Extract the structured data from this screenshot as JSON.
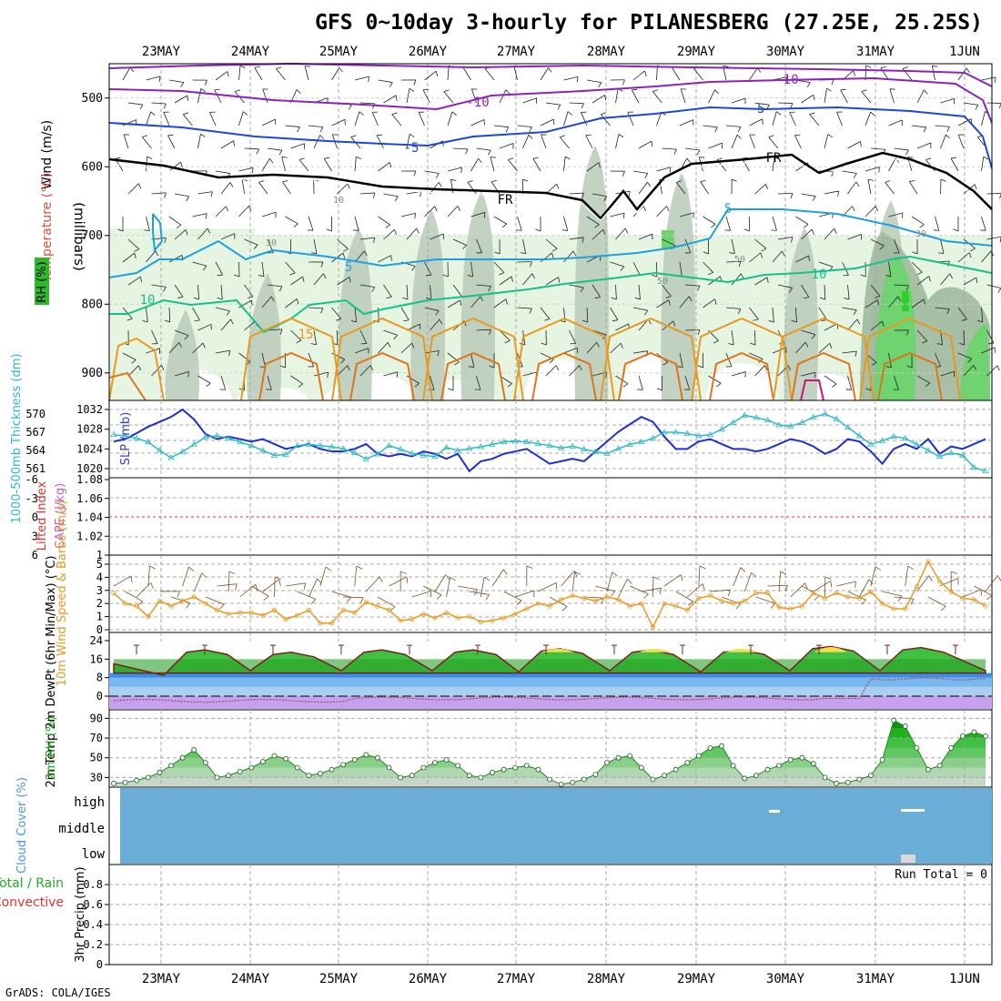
{
  "title": "GFS 0~10day 3-hourly for PILANESBERG (27.25E, 25.25S)",
  "footer": "GrADS: COLA/IGES",
  "dates": [
    "23MAY",
    "24MAY",
    "25MAY",
    "26MAY",
    "27MAY",
    "28MAY",
    "29MAY",
    "30MAY",
    "31MAY",
    "1JUN"
  ],
  "colors": {
    "purple": "#8a22c0",
    "blue": "#1c48d6",
    "black": "#000000",
    "cyan": "#1ea0e0",
    "teal": "#14c08c",
    "orange": "#e89a20",
    "darkorange": "#e0741a",
    "rhlight": "#e6f5e2",
    "rhmid": "#b4c8b4",
    "rhdark": "#6fd36f",
    "cloud": "#6aaed8",
    "precipgrid": "#aaaaaa"
  },
  "panels": {
    "upper": {
      "ylabel_wind": "Wind (m/s)",
      "ylabel_temp": "Temperature (°C)",
      "ylabel_rh": "RH (%)",
      "ylabel_pressure": "(millibars)",
      "yticks": [
        "500",
        "600",
        "700",
        "800",
        "900"
      ],
      "labels": {
        "m10a": "-10",
        "m10b": "-10",
        "m5a": "-5",
        "m5b": "-5",
        "fr1": "FR",
        "fr2": "FR",
        "p5a": "5",
        "p5b": "5",
        "p10a": "10",
        "p10b": "10",
        "p15": "15",
        "rh10": "10",
        "rh30a": "30",
        "rh30b": "30",
        "rh30c": "30",
        "rh50a": "50",
        "rh50b": "50"
      }
    },
    "thickness": {
      "ylabel_left": "1000-500mb Thickness (dm)",
      "ylabel_right": "SLP (mb)",
      "left_ticks": [
        "570",
        "567",
        "564",
        "561"
      ],
      "right_ticks": [
        "1032",
        "1028",
        "1024",
        "1020"
      ]
    },
    "cape": {
      "ylabel_left": "Lifted Index",
      "ylabel_right": "CAPE (J/kg)",
      "left_ticks": [
        "-6",
        "-3",
        "0",
        "3",
        "6"
      ],
      "right_ticks": [
        "1.08",
        "1.06",
        "1.04",
        "1.02",
        "1"
      ]
    },
    "wind10": {
      "ylabel": "10m Wind Speed & Barbs (m/s)",
      "ticks": [
        "5",
        "4",
        "3",
        "2",
        "1",
        "0"
      ]
    },
    "temp2m": {
      "ylabel": "2m Temp 2m DewPt (6hr Min/Max) (°C)",
      "ticks": [
        "24",
        "16",
        "8",
        "0"
      ]
    },
    "rh2m": {
      "ylabel": "2m RH (%)",
      "ticks": [
        "90",
        "70",
        "50",
        "30"
      ]
    },
    "cloud": {
      "ylabel": "Cloud Cover (%)",
      "levels": [
        "high",
        "middle",
        "low"
      ]
    },
    "precip": {
      "ylabel_left": "Total / Rain Convective",
      "ylabel_right": "3hr Precip (mm)",
      "ticks": [
        "0.8",
        "0.6",
        "0.4",
        "0.2",
        "0"
      ],
      "run_total": "Run Total = 0"
    }
  },
  "chart_data": [
    {
      "type": "line",
      "title": "1000-500mb Thickness (dm) and SLP (mb)",
      "x": [
        "22MAY18",
        "22MAY21",
        "23MAY00",
        "23MAY03",
        "23MAY06",
        "23MAY09",
        "23MAY12",
        "23MAY15",
        "23MAY18",
        "23MAY21",
        "24MAY00",
        "24MAY03",
        "24MAY06",
        "24MAY09",
        "24MAY12",
        "24MAY15",
        "24MAY18",
        "24MAY21",
        "25MAY00",
        "25MAY03",
        "25MAY06",
        "25MAY09",
        "25MAY12",
        "25MAY15",
        "25MAY18",
        "25MAY21",
        "26MAY00",
        "26MAY03",
        "26MAY06",
        "26MAY09",
        "26MAY12",
        "26MAY15",
        "26MAY18",
        "26MAY21",
        "27MAY00",
        "27MAY03",
        "27MAY06",
        "27MAY09",
        "27MAY12",
        "27MAY15",
        "27MAY18",
        "27MAY21",
        "28MAY00",
        "28MAY03",
        "28MAY06",
        "28MAY09",
        "28MAY12",
        "28MAY15",
        "28MAY18",
        "28MAY21",
        "29MAY00",
        "29MAY03",
        "29MAY06",
        "29MAY09",
        "29MAY12",
        "29MAY15",
        "29MAY18",
        "29MAY21",
        "30MAY00",
        "30MAY03",
        "30MAY06",
        "30MAY09",
        "30MAY12",
        "30MAY15",
        "30MAY18",
        "30MAY21",
        "31MAY00",
        "31MAY03",
        "31MAY06",
        "31MAY09",
        "31MAY12",
        "31MAY15",
        "31MAY18",
        "31MAY21",
        "1JUN00",
        "1JUN03",
        "1JUN06"
      ],
      "series": [
        {
          "name": "SLP",
          "values": [
            1025.5,
            1026.0,
            1027.2,
            1028.5,
            1029.5,
            1030.5,
            1032.0,
            1030.0,
            1027.0,
            1026.0,
            1026.5,
            1026.0,
            1025.5,
            1026.0,
            1025.0,
            1024.0,
            1024.5,
            1025.0,
            1024.0,
            1023.5,
            1023.5,
            1024.0,
            1025.0,
            1023.0,
            1022.5,
            1023.0,
            1022.5,
            1023.5,
            1023.0,
            1022.0,
            1023.0,
            1019.5,
            1021.5,
            1022.0,
            1023.0,
            1023.5,
            1024.0,
            1022.5,
            1021.0,
            1021.5,
            1022.0,
            1021.5,
            1023.5,
            1025.5,
            1027.5,
            1029.0,
            1030.5,
            1029.5,
            1026.5,
            1024.0,
            1024.0,
            1025.5,
            1026.0,
            1025.0,
            1024.0,
            1024.0,
            1023.5,
            1024.0,
            1025.0,
            1026.0,
            1025.5,
            1024.5,
            1023.0,
            1024.0,
            1026.0,
            1025.5,
            1023.5,
            1021.0,
            1024.0,
            1025.0,
            1024.0,
            1026.0,
            1023.0,
            1024.5,
            1024.0,
            1025.0,
            1026.0
          ]
        },
        {
          "name": "Thickness",
          "values": [
            566.6,
            566.4,
            566.0,
            565.4,
            564.0,
            562.8,
            563.8,
            565.0,
            566.2,
            566.4,
            566.0,
            565.4,
            564.8,
            564.0,
            563.2,
            563.3,
            564.8,
            565.0,
            564.8,
            564.6,
            564.3,
            563.6,
            562.6,
            563.4,
            564.8,
            564.2,
            563.5,
            563.2,
            563.0,
            564.5,
            564.0,
            564.3,
            564.6,
            565.0,
            565.4,
            565.5,
            565.4,
            565.1,
            564.8,
            564.4,
            564.7,
            564.2,
            563.8,
            563.5,
            564.3,
            565.0,
            565.4,
            566.0,
            567.0,
            567.0,
            566.8,
            566.4,
            566.6,
            567.5,
            568.6,
            569.8,
            569.4,
            569.0,
            568.2,
            568.0,
            568.6,
            569.5,
            570.0,
            569.2,
            567.8,
            566.4,
            565.0,
            565.6,
            566.3,
            566.0,
            565.0,
            564.0,
            563.0,
            563.6,
            563.2,
            561.2,
            560.6
          ]
        }
      ]
    },
    {
      "type": "line",
      "title": "10m Wind Speed (m/s)",
      "y": [
        2.8,
        2.0,
        1.8,
        1.0,
        2.2,
        1.8,
        2.2,
        2.5,
        2.0,
        1.5,
        1.2,
        1.3,
        1.3,
        1.1,
        1.5,
        0.8,
        1.1,
        1.5,
        0.5,
        0.5,
        1.5,
        1.3,
        2.1,
        1.8,
        1.5,
        0.7,
        0.8,
        1.2,
        0.9,
        1.3,
        0.9,
        1.0,
        0.6,
        0.7,
        0.9,
        1.2,
        1.6,
        2.0,
        1.8,
        2.3,
        2.6,
        2.4,
        2.2,
        2.5,
        2.3,
        1.8,
        2.0,
        0.2,
        2.0,
        1.8,
        1.5,
        2.4,
        2.6,
        2.2,
        2.0,
        2.2,
        2.8,
        2.8,
        1.7,
        1.6,
        1.8,
        2.8,
        2.4,
        2.8,
        2.5,
        2.4,
        2.9,
        2.0,
        1.6,
        1.6,
        3.3,
        5.2,
        3.7,
        2.9,
        2.4,
        2.3,
        1.8
      ],
      "ylim": [
        0,
        5
      ]
    },
    {
      "type": "area",
      "title": "2m Temp (°C)",
      "max_values": [
        14,
        20,
        19,
        20,
        20,
        20.5,
        20,
        20,
        21.5,
        21
      ],
      "min_values": [
        9,
        11,
        11,
        11,
        10.5,
        11,
        10.5,
        11,
        11,
        10
      ],
      "ylim": [
        -4,
        24
      ]
    },
    {
      "type": "area",
      "title": "2m RH (%)",
      "y": [
        24,
        25,
        27,
        30,
        35,
        42,
        50,
        58,
        45,
        30,
        32,
        36,
        40,
        46,
        52,
        49,
        40,
        32,
        34,
        38,
        43,
        48,
        53,
        50,
        40,
        30,
        32,
        40,
        45,
        48,
        42,
        32,
        30,
        35,
        38,
        40,
        42,
        38,
        28,
        23,
        25,
        28,
        33,
        45,
        50,
        52,
        40,
        28,
        32,
        38,
        45,
        52,
        60,
        62,
        42,
        29,
        32,
        38,
        42,
        48,
        50,
        44,
        30,
        24,
        25,
        28,
        32,
        48,
        88,
        82,
        60,
        38,
        42,
        60,
        72,
        76,
        72
      ],
      "ylim": [
        22,
        95
      ]
    }
  ]
}
